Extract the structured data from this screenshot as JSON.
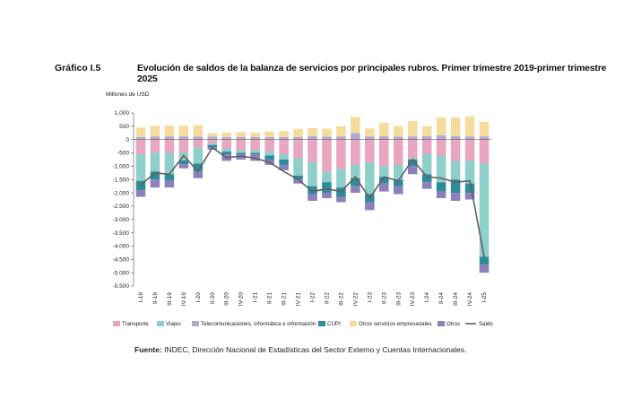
{
  "figure_label": "Gráfico I.5",
  "title": "Evolución de saldos de la balanza de servicios por principales rubros. Primer trimestre 2019-primer trimestre 2025",
  "source_label": "Fuente:",
  "source_text": " INDEC, Dirección Nacional de Estadísticas del Sector Externo y Cuentas Internacionales.",
  "chart_data": {
    "type": "bar",
    "stacked": true,
    "title": "Evolución de saldos de la balanza de servicios por principales rubros. Primer trimestre 2019-primer trimestre 2025",
    "ylabel": "Millones de USD",
    "xlabel": "",
    "ylim": [
      -5500,
      1000
    ],
    "yticks": [
      1000,
      500,
      0,
      -500,
      -1000,
      -1500,
      -2000,
      -2500,
      -3000,
      -3500,
      -4000,
      -4500,
      -5000,
      -5500
    ],
    "ytick_labels": [
      "1.000",
      "500",
      "0",
      "-500",
      "-1.000",
      "-1.500",
      "-2.000",
      "-2.500",
      "-3.000",
      "-3.500",
      "-4.000",
      "-4.500",
      "-5.000",
      "-5.500"
    ],
    "categories": [
      "I-19",
      "II-19",
      "III-19",
      "IV-19",
      "I-20",
      "II-20",
      "III-20",
      "IV-20",
      "I-21",
      "II-21",
      "III-21",
      "IV-21",
      "I-22",
      "II-22",
      "III-22",
      "IV-22",
      "I-23",
      "II-23",
      "III-23",
      "IV-23",
      "I-24",
      "II-24",
      "III-24",
      "IV-24",
      "I-25"
    ],
    "grid": false,
    "legend_position": "bottom",
    "series": [
      {
        "name": "Transporte",
        "color": "#e8a6c0",
        "values": [
          -550,
          -500,
          -500,
          -480,
          -300,
          -150,
          -350,
          -400,
          -400,
          -450,
          -550,
          -700,
          -850,
          -1200,
          -1100,
          -950,
          -850,
          -1000,
          -950,
          -700,
          -550,
          -600,
          -800,
          -800,
          -900
        ]
      },
      {
        "name": "Viajes",
        "color": "#8fcfca",
        "values": [
          -1000,
          -700,
          -800,
          -300,
          -600,
          -50,
          -100,
          -100,
          -100,
          -150,
          -200,
          -650,
          -900,
          -400,
          -700,
          -500,
          -1200,
          -400,
          -550,
          -50,
          -750,
          -1000,
          -700,
          -850,
          -3500
        ]
      },
      {
        "name": "Telecomunicaciones,  informática e información",
        "color": "#b4a8d4",
        "values": [
          100,
          120,
          120,
          120,
          110,
          110,
          100,
          100,
          90,
          100,
          100,
          100,
          130,
          110,
          120,
          250,
          120,
          130,
          110,
          120,
          130,
          160,
          130,
          120,
          120
        ]
      },
      {
        "name": "CUPI",
        "color": "#2e8b9a",
        "values": [
          -350,
          -300,
          -250,
          -150,
          -300,
          -80,
          -100,
          -50,
          -50,
          -150,
          -200,
          -150,
          -300,
          -400,
          -350,
          -300,
          -300,
          -250,
          -250,
          -250,
          -300,
          -350,
          -500,
          -350,
          -300
        ]
      },
      {
        "name": "Otros servicios empresariales",
        "color": "#f5dc9c",
        "values": [
          350,
          400,
          400,
          400,
          430,
          130,
          170,
          180,
          170,
          200,
          220,
          300,
          300,
          300,
          380,
          600,
          300,
          500,
          400,
          580,
          370,
          670,
          700,
          750,
          550
        ]
      },
      {
        "name": "Otros",
        "color": "#8c7fbc",
        "values": [
          -250,
          -300,
          -250,
          -150,
          -250,
          -100,
          -250,
          -200,
          -250,
          -200,
          -200,
          -150,
          -250,
          -200,
          -200,
          -250,
          -300,
          -300,
          -300,
          -300,
          -250,
          -250,
          -300,
          -250,
          -300
        ]
      },
      {
        "name": "Saldo",
        "color": "#606060",
        "kind": "line",
        "values": [
          -1700,
          -1250,
          -1300,
          -600,
          -1200,
          -300,
          -680,
          -620,
          -700,
          -850,
          -1200,
          -1500,
          -1950,
          -1850,
          -1950,
          -1400,
          -2200,
          -1400,
          -1550,
          -750,
          -1400,
          -1450,
          -1600,
          -1550,
          -4400
        ]
      }
    ]
  }
}
